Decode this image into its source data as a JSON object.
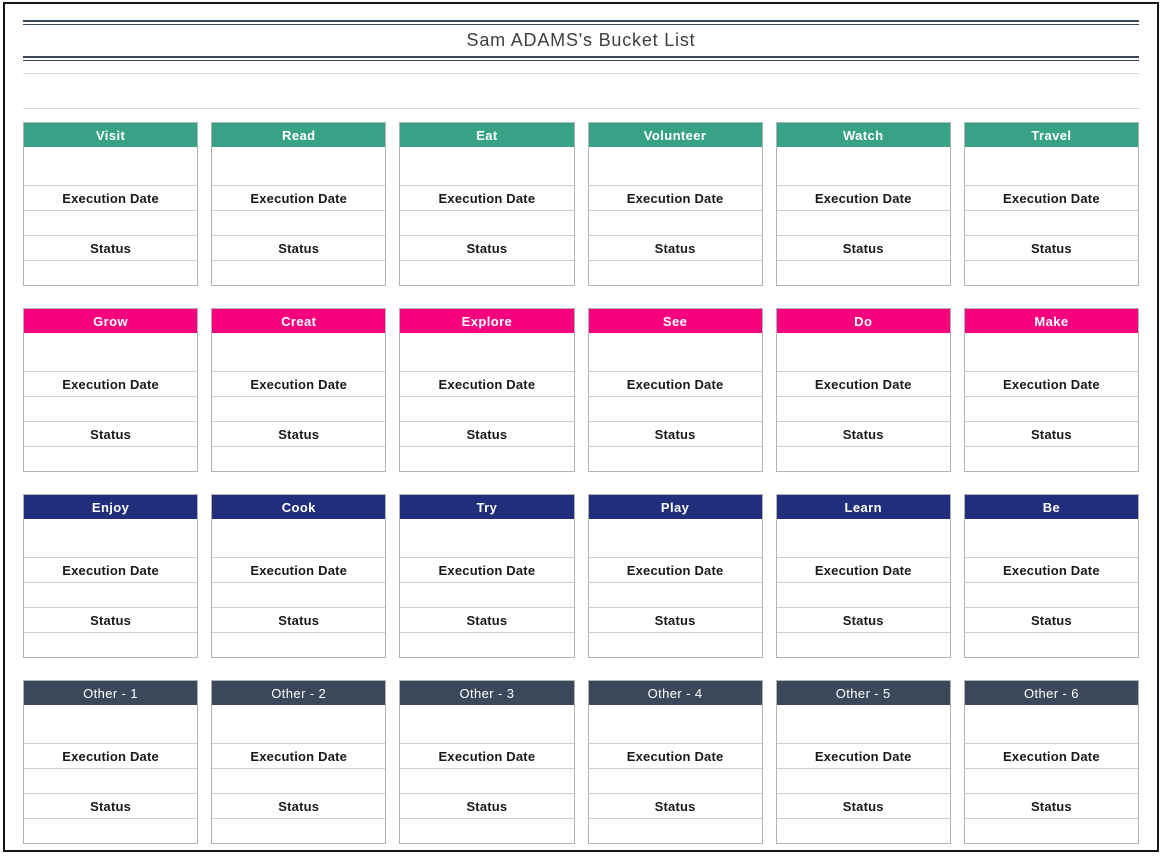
{
  "page": {
    "title": "Sam ADAMS's Bucket List"
  },
  "labels": {
    "execution_date": "Execution Date",
    "status": "Status"
  },
  "colors": {
    "teal": "#38A287",
    "pink": "#F7017E",
    "navy": "#212E7C",
    "slate": "#3A4859",
    "page_border": "#151515",
    "double_rule": "#3A4A5A",
    "cell_border": "#D0D0D0",
    "header_text": "#FFFFFF",
    "label_text": "#191919",
    "title_text": "#3F3F3F"
  },
  "rows": [
    {
      "name": "row-teal",
      "header_color": "#38A287",
      "header_bold": true,
      "cards": [
        "Visit",
        "Read",
        "Eat",
        "Volunteer",
        "Watch",
        "Travel"
      ]
    },
    {
      "name": "row-pink",
      "header_color": "#F7017E",
      "header_bold": true,
      "cards": [
        "Grow",
        "Creat",
        "Explore",
        "See",
        "Do",
        "Make"
      ]
    },
    {
      "name": "row-navy",
      "header_color": "#212E7C",
      "header_bold": true,
      "cards": [
        "Enjoy",
        "Cook",
        "Try",
        "Play",
        "Learn",
        "Be"
      ]
    },
    {
      "name": "row-slate",
      "header_color": "#3A4859",
      "header_bold": false,
      "cards": [
        "Other - 1",
        "Other - 2",
        "Other - 3",
        "Other - 4",
        "Other - 5",
        "Other - 6"
      ]
    }
  ]
}
